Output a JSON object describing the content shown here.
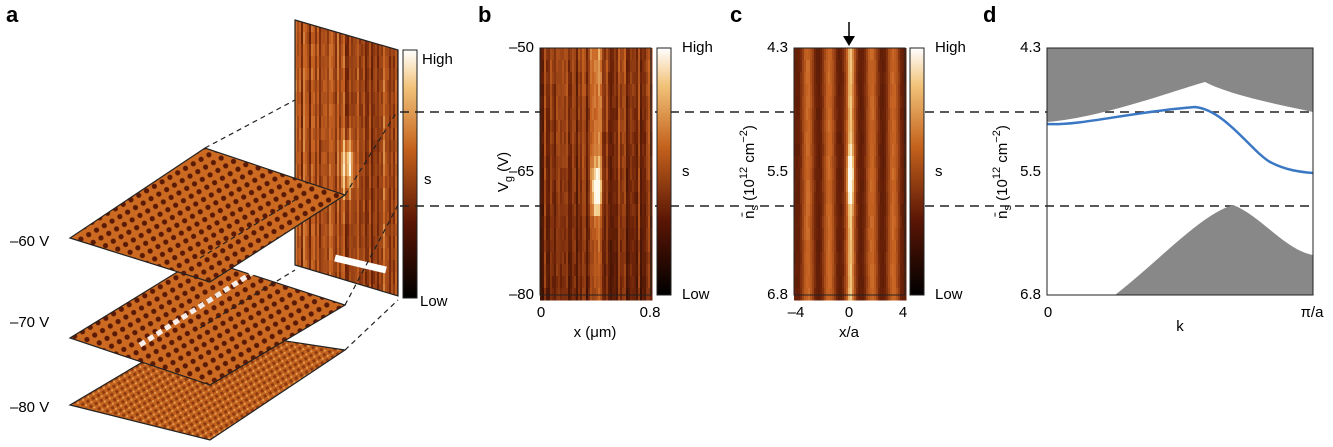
{
  "panel_a": {
    "label": "a",
    "colorbar": {
      "high": "High",
      "mid": "s",
      "low": "Low"
    },
    "layers": [
      "–60 V",
      "–70 V",
      "–80 V"
    ]
  },
  "panel_b": {
    "label": "b",
    "y_ticks": [
      "–50",
      "–65",
      "–80"
    ],
    "y_label": [
      "V",
      "g",
      " (V)"
    ],
    "x_ticks": [
      "0",
      "0.8"
    ],
    "x_label": "x (μm)",
    "colorbar": {
      "high": "High",
      "mid": "s",
      "low": "Low"
    }
  },
  "panel_c": {
    "label": "c",
    "y_ticks": [
      "4.3",
      "5.5",
      "6.8"
    ],
    "y_label": [
      "n̄",
      "s",
      " (10",
      "12",
      " cm",
      "−2",
      ")"
    ],
    "x_ticks": [
      "–4",
      "0",
      "4"
    ],
    "x_label": "x/a",
    "colorbar": {
      "high": "High",
      "mid": "s",
      "low": "Low"
    }
  },
  "panel_d": {
    "label": "d",
    "y_ticks": [
      "4.3",
      "5.5",
      "6.8"
    ],
    "y_label": [
      "n̄",
      "s",
      " (10",
      "12",
      " cm",
      "−2",
      ")"
    ],
    "x_ticks": [
      "0",
      "π/a"
    ],
    "x_label": "k"
  }
}
